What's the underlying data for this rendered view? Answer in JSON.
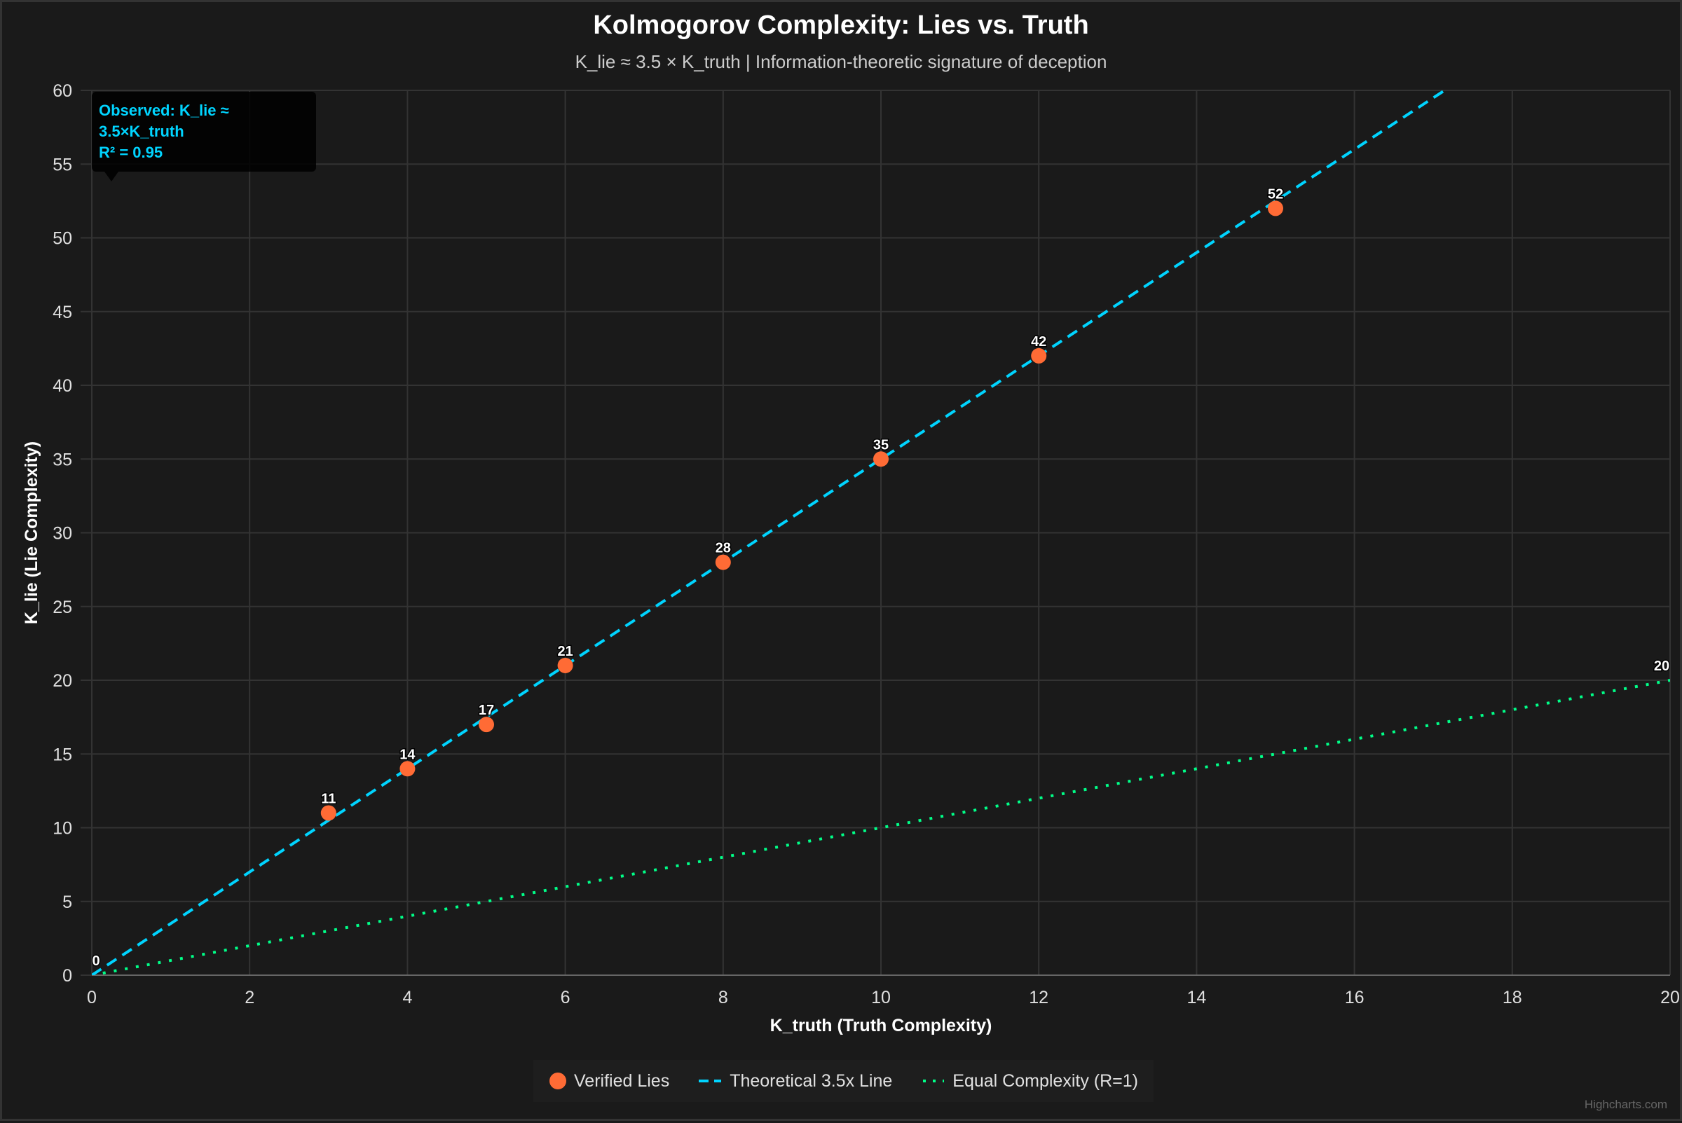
{
  "chart_data": {
    "type": "scatter",
    "title": "Kolmogorov Complexity: Lies vs. Truth",
    "subtitle": "K_lie ≈ 3.5 × K_truth | Information-theoretic signature of deception",
    "xlabel": "K_truth (Truth Complexity)",
    "ylabel": "K_lie (Lie Complexity)",
    "xlim": [
      0,
      20
    ],
    "ylim": [
      0,
      60
    ],
    "xticks": [
      0,
      2,
      4,
      6,
      8,
      10,
      12,
      14,
      16,
      18,
      20
    ],
    "yticks": [
      0,
      5,
      10,
      15,
      20,
      25,
      30,
      35,
      40,
      45,
      50,
      55,
      60
    ],
    "grid": true,
    "legend_placement": "bottom-center",
    "series": [
      {
        "name": "Verified Lies",
        "kind": "scatter",
        "color": "#ff6b35",
        "x": [
          3,
          4,
          5,
          6,
          8,
          10,
          12,
          15
        ],
        "y": [
          11,
          14,
          17,
          21,
          28,
          35,
          42,
          52
        ]
      },
      {
        "name": "Theoretical 3.5x Line",
        "kind": "line",
        "dash": "dashed",
        "color": "#00d4ff",
        "x": [
          0,
          20
        ],
        "y": [
          0,
          70
        ]
      },
      {
        "name": "Equal Complexity (R=1)",
        "kind": "line",
        "dash": "dotted",
        "color": "#00ff88",
        "x": [
          0,
          20
        ],
        "y": [
          0,
          20
        ]
      }
    ],
    "annotation": {
      "line1": "Observed: K_lie ≈ 3.5×K_truth",
      "line2": "R² = 0.95"
    }
  },
  "credits": "Highcharts.com"
}
